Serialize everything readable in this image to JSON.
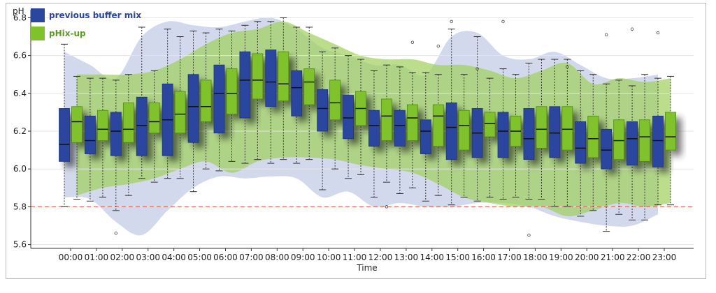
{
  "chart_data": {
    "type": "box",
    "ylabel": "pH",
    "xlabel": "Time",
    "ylim": [
      5.58,
      6.82
    ],
    "y_ticks": [
      "5.6",
      "5.8",
      "6.0",
      "6.2",
      "6.4",
      "6.6",
      "6.8"
    ],
    "threshold": 5.8,
    "categories": [
      "00:00",
      "01:00",
      "02:00",
      "03:00",
      "04:00",
      "05:00",
      "06:00",
      "07:00",
      "08:00",
      "09:00",
      "10:00",
      "11:00",
      "12:00",
      "13:00",
      "14:00",
      "15:00",
      "16:00",
      "17:00",
      "18:00",
      "19:00",
      "20:00",
      "21:00",
      "22:00",
      "23:00"
    ],
    "legend_position": "top-left",
    "colors": {
      "previous": "#2a469f",
      "phix": "#7fc22c",
      "threshold": "#e07060",
      "band_previous": "#c3cce6",
      "band_phix": "#9fd05b"
    },
    "series": [
      {
        "name": "previous buffer mix",
        "boxes": [
          {
            "whisker_low": 5.8,
            "q1": 6.04,
            "median": 6.13,
            "q3": 6.32,
            "whisker_high": 6.66
          },
          {
            "whisker_low": 5.83,
            "q1": 6.08,
            "median": 6.15,
            "q3": 6.28,
            "whisker_high": 6.48
          },
          {
            "whisker_low": 5.78,
            "q1": 6.07,
            "median": 6.2,
            "q3": 6.3,
            "whisker_high": 6.47
          },
          {
            "whisker_low": 5.95,
            "q1": 6.07,
            "median": 6.23,
            "q3": 6.38,
            "whisker_high": 6.75
          },
          {
            "whisker_low": 5.95,
            "q1": 6.07,
            "median": 6.26,
            "q3": 6.45,
            "whisker_high": 6.74
          },
          {
            "whisker_low": 5.88,
            "q1": 6.14,
            "median": 6.33,
            "q3": 6.5,
            "whisker_high": 6.73
          },
          {
            "whisker_low": 5.99,
            "q1": 6.19,
            "median": 6.4,
            "q3": 6.55,
            "whisker_high": 6.74
          },
          {
            "whisker_low": 6.03,
            "q1": 6.27,
            "median": 6.47,
            "q3": 6.62,
            "whisker_high": 6.76
          },
          {
            "whisker_low": 6.03,
            "q1": 6.33,
            "median": 6.46,
            "q3": 6.63,
            "whisker_high": 6.78
          },
          {
            "whisker_low": 6.03,
            "q1": 6.28,
            "median": 6.43,
            "q3": 6.52,
            "whisker_high": 6.75
          },
          {
            "whisker_low": 5.89,
            "q1": 6.2,
            "median": 6.32,
            "q3": 6.42,
            "whisker_high": 6.62
          },
          {
            "whisker_low": 5.95,
            "q1": 6.16,
            "median": 6.27,
            "q3": 6.39,
            "whisker_high": 6.6
          },
          {
            "whisker_low": 5.85,
            "q1": 6.12,
            "median": 6.23,
            "q3": 6.31,
            "whisker_high": 6.52
          },
          {
            "whisker_low": 5.87,
            "q1": 6.12,
            "median": 6.23,
            "q3": 6.31,
            "whisker_high": 6.54
          },
          {
            "whisker_low": 5.83,
            "q1": 6.08,
            "median": 6.2,
            "q3": 6.26,
            "whisker_high": 6.51
          },
          {
            "whisker_low": 5.81,
            "q1": 6.05,
            "median": 6.22,
            "q3": 6.35,
            "whisker_high": 6.74
          },
          {
            "whisker_low": 5.83,
            "q1": 6.06,
            "median": 6.19,
            "q3": 6.32,
            "whisker_high": 6.7
          },
          {
            "whisker_low": 5.84,
            "q1": 6.06,
            "median": 6.2,
            "q3": 6.3,
            "whisker_high": 6.53
          },
          {
            "whisker_low": 5.84,
            "q1": 6.05,
            "median": 6.16,
            "q3": 6.32,
            "whisker_high": 6.56
          },
          {
            "whisker_low": 5.8,
            "q1": 6.06,
            "median": 6.19,
            "q3": 6.33,
            "whisker_high": 6.58
          },
          {
            "whisker_low": 5.75,
            "q1": 6.03,
            "median": 6.11,
            "q3": 6.25,
            "whisker_high": 6.52
          },
          {
            "whisker_low": 5.67,
            "q1": 6.0,
            "median": 6.1,
            "q3": 6.21,
            "whisker_high": 6.45
          },
          {
            "whisker_low": 5.73,
            "q1": 6.02,
            "median": 6.16,
            "q3": 6.25,
            "whisker_high": 6.44
          },
          {
            "whisker_low": 5.81,
            "q1": 6.01,
            "median": 6.15,
            "q3": 6.28,
            "whisker_high": 6.48
          }
        ],
        "band": {
          "low": [
            5.85,
            5.84,
            5.72,
            5.65,
            5.78,
            5.9,
            5.96,
            5.95,
            5.96,
            5.95,
            5.85,
            5.88,
            5.8,
            5.82,
            5.8,
            5.8,
            5.82,
            5.82,
            5.8,
            5.75,
            5.72,
            5.7,
            5.7,
            5.76
          ],
          "high": [
            6.62,
            6.55,
            6.48,
            6.7,
            6.78,
            6.76,
            6.75,
            6.78,
            6.8,
            6.74,
            6.64,
            6.6,
            6.55,
            6.55,
            6.5,
            6.7,
            6.72,
            6.6,
            6.58,
            6.62,
            6.55,
            6.48,
            6.48,
            6.5
          ]
        },
        "outliers": [
          {
            "cat": 2,
            "y": 5.66
          },
          {
            "cat": 15,
            "y": 6.78
          },
          {
            "cat": 16,
            "y": 6.53
          },
          {
            "cat": 17,
            "y": 6.78
          },
          {
            "cat": 18,
            "y": 5.65
          },
          {
            "cat": 21,
            "y": 6.71
          },
          {
            "cat": 22,
            "y": 6.74
          },
          {
            "cat": 23,
            "y": 6.72
          }
        ]
      },
      {
        "name": "pHix-up",
        "boxes": [
          {
            "whisker_low": 5.84,
            "q1": 6.14,
            "median": 6.25,
            "q3": 6.33,
            "whisker_high": 6.49
          },
          {
            "whisker_low": 5.85,
            "q1": 6.15,
            "median": 6.21,
            "q3": 6.31,
            "whisker_high": 6.48
          },
          {
            "whisker_low": 5.86,
            "q1": 6.14,
            "median": 6.21,
            "q3": 6.35,
            "whisker_high": 6.5
          },
          {
            "whisker_low": 5.93,
            "q1": 6.19,
            "median": 6.25,
            "q3": 6.35,
            "whisker_high": 6.52
          },
          {
            "whisker_low": 5.95,
            "q1": 6.19,
            "median": 6.29,
            "q3": 6.41,
            "whisker_high": 6.7
          },
          {
            "whisker_low": 6.0,
            "q1": 6.25,
            "median": 6.33,
            "q3": 6.47,
            "whisker_high": 6.72
          },
          {
            "whisker_low": 6.04,
            "q1": 6.29,
            "median": 6.4,
            "q3": 6.53,
            "whisker_high": 6.73
          },
          {
            "whisker_low": 6.05,
            "q1": 6.37,
            "median": 6.47,
            "q3": 6.61,
            "whisker_high": 6.78
          },
          {
            "whisker_low": 6.05,
            "q1": 6.36,
            "median": 6.45,
            "q3": 6.62,
            "whisker_high": 6.8
          },
          {
            "whisker_low": 6.05,
            "q1": 6.34,
            "median": 6.46,
            "q3": 6.53,
            "whisker_high": 6.75
          },
          {
            "whisker_low": 6.0,
            "q1": 6.26,
            "median": 6.35,
            "q3": 6.47,
            "whisker_high": 6.64
          },
          {
            "whisker_low": 5.97,
            "q1": 6.23,
            "median": 6.32,
            "q3": 6.41,
            "whisker_high": 6.58
          },
          {
            "whisker_low": 5.93,
            "q1": 6.15,
            "median": 6.28,
            "q3": 6.37,
            "whisker_high": 6.55
          },
          {
            "whisker_low": 5.9,
            "q1": 6.15,
            "median": 6.27,
            "q3": 6.34,
            "whisker_high": 6.51
          },
          {
            "whisker_low": 5.86,
            "q1": 6.12,
            "median": 6.28,
            "q3": 6.34,
            "whisker_high": 6.5
          },
          {
            "whisker_low": 5.85,
            "q1": 6.1,
            "median": 6.23,
            "q3": 6.31,
            "whisker_high": 6.5
          },
          {
            "whisker_low": 5.85,
            "q1": 6.17,
            "median": 6.24,
            "q3": 6.3,
            "whisker_high": 6.48
          },
          {
            "whisker_low": 5.85,
            "q1": 6.12,
            "median": 6.2,
            "q3": 6.28,
            "whisker_high": 6.5
          },
          {
            "whisker_low": 5.84,
            "q1": 6.11,
            "median": 6.21,
            "q3": 6.33,
            "whisker_high": 6.58
          },
          {
            "whisker_low": 5.8,
            "q1": 6.1,
            "median": 6.21,
            "q3": 6.33,
            "whisker_high": 6.58
          },
          {
            "whisker_low": 5.78,
            "q1": 6.06,
            "median": 6.16,
            "q3": 6.28,
            "whisker_high": 6.5
          },
          {
            "whisker_low": 5.76,
            "q1": 6.05,
            "median": 6.15,
            "q3": 6.26,
            "whisker_high": 6.47
          },
          {
            "whisker_low": 5.73,
            "q1": 6.04,
            "median": 6.17,
            "q3": 6.26,
            "whisker_high": 6.5
          },
          {
            "whisker_low": 5.81,
            "q1": 6.1,
            "median": 6.17,
            "q3": 6.3,
            "whisker_high": 6.49
          }
        ],
        "band": {
          "low": [
            5.86,
            5.9,
            5.92,
            5.95,
            6.0,
            6.04,
            5.98,
            6.04,
            6.06,
            6.06,
            6.05,
            6.02,
            6.0,
            5.98,
            5.92,
            5.85,
            5.82,
            5.8,
            5.8,
            5.75,
            5.78,
            5.82,
            5.8,
            5.82
          ],
          "high": [
            6.5,
            6.5,
            6.5,
            6.52,
            6.58,
            6.66,
            6.72,
            6.74,
            6.78,
            6.72,
            6.66,
            6.6,
            6.58,
            6.58,
            6.55,
            6.55,
            6.52,
            6.48,
            6.52,
            6.56,
            6.45,
            6.48,
            6.46,
            6.48
          ]
        },
        "outliers": [
          {
            "cat": 13,
            "y": 6.67
          },
          {
            "cat": 14,
            "y": 6.65
          },
          {
            "cat": 12,
            "y": 5.8
          },
          {
            "cat": 19,
            "y": 6.54
          }
        ]
      }
    ]
  }
}
